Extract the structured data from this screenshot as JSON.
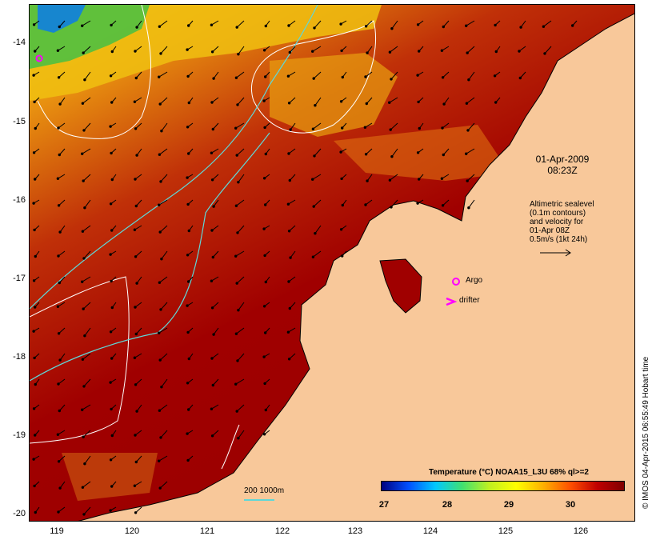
{
  "map": {
    "date_label": "01-Apr-2009",
    "time_label": "08:23Z",
    "altimetry_note": [
      "Altimetric sealevel",
      "(0.1m contours)",
      "and velocity for",
      "01-Apr 08Z",
      "0.5m/s (1kt 24h)"
    ],
    "argo_label": "Argo",
    "drifter_label": "drifter",
    "scale_label": "200 1000m",
    "credit": "© IMOS 04-Apr-2015 06:55:49 Hobart time",
    "lat_labels": [
      "-14",
      "-15",
      "-16",
      "-17",
      "-18",
      "-19",
      "-20"
    ],
    "lon_labels": [
      "119",
      "120",
      "121",
      "122",
      "123",
      "124",
      "125",
      "126"
    ],
    "lon_range": [
      118.6,
      126.7
    ],
    "lat_range": [
      -20.08,
      -13.6
    ],
    "land_color": "#f8c89a",
    "warm_sea_color": "#a00000",
    "contour_color": "#ffffff",
    "isobath_color": "#5fd7d7",
    "marker_color": "#ff00ff"
  },
  "colorbar": {
    "title": "Temperature (°C) NOAA15_L3U 68% ql>=2",
    "ticks": [
      "27",
      "28",
      "29",
      "30"
    ],
    "range": [
      27,
      30.8
    ],
    "stops": [
      "#00007f",
      "#0050ff",
      "#00c8ff",
      "#40e070",
      "#c0f020",
      "#ffff00",
      "#ffb000",
      "#ff5000",
      "#c00000",
      "#800000"
    ]
  }
}
